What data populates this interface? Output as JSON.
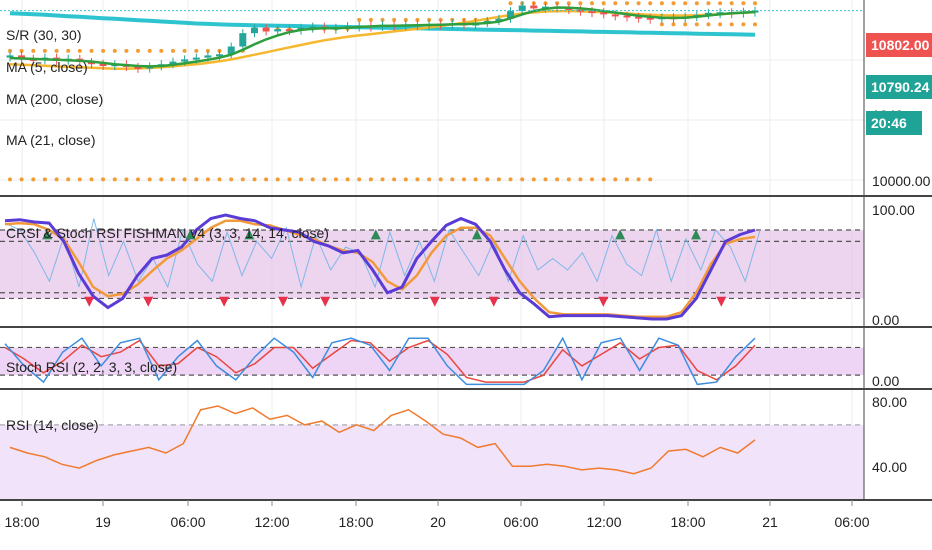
{
  "colors": {
    "background": "#ffffff",
    "grid": "#e9ecf1",
    "separator": "#444444",
    "candle_up": "#26a69a",
    "candle_down": "#ef5350",
    "ma5": "#2e9e3e",
    "ma200": "#2ec4cf",
    "ma21": "#f5b82e",
    "sr_dots": "#f39c33",
    "price_label_red": "#ef5350",
    "price_label_teal": "#1fa397",
    "band_fill": "#e6c3ea",
    "stoch_band_fill": "#eed4f5",
    "rsi_band_fill": "#f1e3fa",
    "dashed": "#555555",
    "crsi_fast": "#5b3bd6",
    "crsi_slow": "#f29a3a",
    "crsi_light": "#7fb7e6",
    "stoch_k": "#3d8ede",
    "stoch_d": "#e8473f",
    "rsi_line": "#f07a2e",
    "up_marker": "#2e8b57",
    "down_marker": "#e8314a"
  },
  "legends": {
    "main": [
      "S/R (30, 30)",
      "MA (5, close)",
      "MA (200, close)",
      "MA (21, close)"
    ],
    "crsi": "CRSI & Stoch RSI FISHMAN v4 (3, 3, 14, 14, close)",
    "stoch": "Stoch RSI (2, 2, 3, 3, close)",
    "rsi": "RSI (14, close)"
  },
  "axis": {
    "x_tick_labels": [
      "18:00",
      "19",
      "06:00",
      "12:00",
      "18:00",
      "20",
      "06:00",
      "12:00",
      "18:00",
      "21",
      "06:00"
    ],
    "main_price_labels": [
      "10000.00"
    ],
    "main_partial_label": "1040",
    "crsi_labels": [
      "100.00",
      "0.00"
    ],
    "stoch_labels": [
      "0.00"
    ],
    "rsi_labels": [
      "80.00",
      "40.00"
    ],
    "price_tags": [
      {
        "text": "10802.00",
        "color": "red"
      },
      {
        "text": "10790.24",
        "color": "teal"
      },
      {
        "text": "20:46",
        "color": "teal"
      }
    ]
  },
  "chart_data": [
    {
      "type": "candlestick",
      "title": "",
      "xlabel": "",
      "ylabel": "",
      "ylim": [
        9965,
        10850
      ],
      "visible_price_labels": [
        10000,
        10790.24,
        10802
      ],
      "candles": [
        {
          "o": 10590,
          "c": 10600,
          "up": true
        },
        {
          "o": 10600,
          "c": 10585,
          "up": false
        },
        {
          "o": 10585,
          "c": 10575,
          "up": false
        },
        {
          "o": 10578,
          "c": 10590,
          "up": true
        },
        {
          "o": 10590,
          "c": 10575,
          "up": false
        },
        {
          "o": 10575,
          "c": 10585,
          "up": true
        },
        {
          "o": 10585,
          "c": 10570,
          "up": false
        },
        {
          "o": 10570,
          "c": 10560,
          "up": false
        },
        {
          "o": 10562,
          "c": 10552,
          "up": false
        },
        {
          "o": 10552,
          "c": 10560,
          "up": true
        },
        {
          "o": 10560,
          "c": 10548,
          "up": false
        },
        {
          "o": 10548,
          "c": 10540,
          "up": false
        },
        {
          "o": 10540,
          "c": 10550,
          "up": true
        },
        {
          "o": 10550,
          "c": 10560,
          "up": true
        },
        {
          "o": 10560,
          "c": 10572,
          "up": true
        },
        {
          "o": 10572,
          "c": 10582,
          "up": true
        },
        {
          "o": 10582,
          "c": 10590,
          "up": true
        },
        {
          "o": 10590,
          "c": 10600,
          "up": true
        },
        {
          "o": 10600,
          "c": 10605,
          "up": true
        },
        {
          "o": 10605,
          "c": 10640,
          "up": true
        },
        {
          "o": 10640,
          "c": 10700,
          "up": true
        },
        {
          "o": 10700,
          "c": 10725,
          "up": true
        },
        {
          "o": 10725,
          "c": 10708,
          "up": false
        },
        {
          "o": 10708,
          "c": 10718,
          "up": true
        },
        {
          "o": 10718,
          "c": 10712,
          "up": false
        },
        {
          "o": 10712,
          "c": 10725,
          "up": true
        },
        {
          "o": 10725,
          "c": 10730,
          "up": true
        },
        {
          "o": 10730,
          "c": 10718,
          "up": false
        },
        {
          "o": 10718,
          "c": 10725,
          "up": true
        },
        {
          "o": 10725,
          "c": 10732,
          "up": true
        },
        {
          "o": 10732,
          "c": 10735,
          "up": true
        },
        {
          "o": 10735,
          "c": 10730,
          "up": false
        },
        {
          "o": 10730,
          "c": 10738,
          "up": true
        },
        {
          "o": 10738,
          "c": 10733,
          "up": false
        },
        {
          "o": 10733,
          "c": 10740,
          "up": true
        },
        {
          "o": 10740,
          "c": 10732,
          "up": false
        },
        {
          "o": 10732,
          "c": 10742,
          "up": true
        },
        {
          "o": 10742,
          "c": 10738,
          "up": false
        },
        {
          "o": 10738,
          "c": 10745,
          "up": true
        },
        {
          "o": 10745,
          "c": 10735,
          "up": false
        },
        {
          "o": 10735,
          "c": 10748,
          "up": true
        },
        {
          "o": 10748,
          "c": 10755,
          "up": true
        },
        {
          "o": 10755,
          "c": 10765,
          "up": true
        },
        {
          "o": 10765,
          "c": 10800,
          "up": true
        },
        {
          "o": 10800,
          "c": 10825,
          "up": true
        },
        {
          "o": 10825,
          "c": 10812,
          "up": false
        },
        {
          "o": 10812,
          "c": 10820,
          "up": true
        },
        {
          "o": 10820,
          "c": 10814,
          "up": false
        },
        {
          "o": 10814,
          "c": 10806,
          "up": false
        },
        {
          "o": 10806,
          "c": 10800,
          "up": false
        },
        {
          "o": 10800,
          "c": 10795,
          "up": false
        },
        {
          "o": 10795,
          "c": 10785,
          "up": false
        },
        {
          "o": 10785,
          "c": 10780,
          "up": false
        },
        {
          "o": 10780,
          "c": 10775,
          "up": false
        },
        {
          "o": 10775,
          "c": 10770,
          "up": false
        },
        {
          "o": 10770,
          "c": 10765,
          "up": false
        },
        {
          "o": 10765,
          "c": 10772,
          "up": true
        },
        {
          "o": 10772,
          "c": 10768,
          "up": false
        },
        {
          "o": 10768,
          "c": 10775,
          "up": true
        },
        {
          "o": 10775,
          "c": 10782,
          "up": true
        },
        {
          "o": 10782,
          "c": 10792,
          "up": true
        },
        {
          "o": 10792,
          "c": 10795,
          "up": true
        },
        {
          "o": 10795,
          "c": 10790,
          "up": false
        },
        {
          "o": 10790,
          "c": 10797,
          "up": true
        },
        {
          "o": 10797,
          "c": 10802,
          "up": true
        }
      ],
      "ma5": [
        10588,
        10586,
        10584,
        10582,
        10580,
        10578,
        10576,
        10572,
        10566,
        10560,
        10556,
        10552,
        10550,
        10552,
        10557,
        10564,
        10572,
        10580,
        10590,
        10603,
        10625,
        10650,
        10672,
        10690,
        10705,
        10715,
        10720,
        10722,
        10722,
        10725,
        10728,
        10731,
        10733,
        10734,
        10735,
        10736,
        10737,
        10738,
        10740,
        10741,
        10743,
        10746,
        10752,
        10768,
        10785,
        10800,
        10810,
        10816,
        10815,
        10812,
        10807,
        10800,
        10793,
        10786,
        10779,
        10774,
        10770,
        10769,
        10770,
        10774,
        10780,
        10786,
        10790,
        10793,
        10796
      ],
      "ma200": [
        10790,
        10788,
        10786,
        10783,
        10780,
        10777,
        10774,
        10771,
        10768,
        10765,
        10762,
        10759,
        10756,
        10753,
        10750,
        10747,
        10744,
        10742,
        10740,
        10738,
        10737,
        10736,
        10735,
        10734,
        10733,
        10732,
        10731,
        10730,
        10729,
        10728,
        10727,
        10726,
        10725,
        10724,
        10723,
        10722,
        10721,
        10720,
        10719,
        10718,
        10717,
        10716,
        10715,
        10714,
        10713,
        10712,
        10711,
        10710,
        10709,
        10708,
        10707,
        10706,
        10705,
        10704,
        10703,
        10702,
        10701,
        10700,
        10699,
        10698,
        10697,
        10696,
        10695,
        10694,
        10693
      ],
      "ma21": [
        10560,
        10558,
        10556,
        10553,
        10550,
        10548,
        10546,
        10544,
        10542,
        10540,
        10540,
        10541,
        10543,
        10546,
        10550,
        10555,
        10560,
        10566,
        10573,
        10582,
        10592,
        10603,
        10614,
        10625,
        10636,
        10647,
        10658,
        10668,
        10676,
        10684,
        10690,
        10696,
        10702,
        10708,
        10714,
        10720,
        10726,
        10733,
        10740,
        10748,
        10756,
        10765,
        10774,
        10782,
        10789,
        10794,
        10798,
        10800,
        10800,
        10799,
        10797,
        10795,
        10792,
        10789,
        10786,
        10783,
        10781,
        10780,
        10780,
        10781,
        10783,
        10786,
        10789,
        10792,
        10795
      ],
      "sr_upper": [
        10620,
        10620,
        10620,
        10620,
        10620,
        10620,
        10620,
        10620,
        10620,
        10620,
        10620,
        10620,
        10620,
        10620,
        10620,
        10620,
        10620,
        10620,
        10620,
        10620,
        10620,
        10720,
        10720,
        10720,
        10720,
        10720,
        10720,
        10720,
        10720,
        10720,
        10760,
        10760,
        10760,
        10760,
        10760,
        10760,
        10760,
        10760,
        10760,
        10760,
        10760,
        10760,
        10760,
        10835,
        10835,
        10835,
        10835,
        10835,
        10835,
        10835,
        10835,
        10835,
        10835,
        10835,
        10835,
        10835,
        10835,
        10835,
        10835,
        10835,
        10835,
        10835,
        10835,
        10835,
        10835
      ],
      "sr_lower": [
        10040,
        10040,
        10040,
        10040,
        10040,
        10040,
        10040,
        10040,
        10040,
        10040,
        10040,
        10040,
        10040,
        10040,
        10040,
        10040,
        10040,
        10040,
        10040,
        10040,
        10040,
        10040,
        10040,
        10040,
        10040,
        10040,
        10040,
        10040,
        10040,
        10040,
        10040,
        10040,
        10040,
        10040,
        10040,
        10040,
        10040,
        10040,
        10040,
        10040,
        10040,
        10040,
        10040,
        10040,
        10040,
        10040,
        10040,
        10040,
        10040,
        10040,
        10040,
        10040,
        10040,
        10040,
        10040,
        10040,
        10740,
        10740,
        10740,
        10740,
        10740,
        10740,
        10740,
        10740,
        10740
      ]
    },
    {
      "type": "line",
      "title": "CRSI & Stoch RSI FISHMAN v4 (3, 3, 14, 14, close)",
      "ylim": [
        -5,
        108
      ],
      "band": [
        20,
        80
      ],
      "dashed_levels": [
        20,
        25,
        70,
        80
      ],
      "series": [
        {
          "values": [
            88,
            89,
            87,
            86,
            70,
            42,
            22,
            12,
            20,
            40,
            55,
            58,
            65,
            80,
            90,
            93,
            90,
            88,
            82,
            80,
            78,
            70,
            66,
            60,
            62,
            45,
            25,
            30,
            55,
            70,
            84,
            90,
            85,
            70,
            45,
            25,
            15,
            4,
            5,
            5,
            5,
            5,
            4,
            3,
            2,
            2,
            5,
            20,
            45,
            70,
            76,
            80
          ]
        },
        {
          "values": [
            85,
            86,
            85,
            80,
            72,
            52,
            30,
            22,
            24,
            32,
            44,
            55,
            62,
            72,
            82,
            88,
            88,
            85,
            84,
            80,
            76,
            72,
            66,
            62,
            60,
            52,
            35,
            28,
            40,
            60,
            75,
            82,
            82,
            75,
            55,
            35,
            20,
            8,
            6,
            6,
            6,
            6,
            5,
            4,
            4,
            4,
            8,
            25,
            50,
            68,
            72,
            74
          ]
        },
        {
          "values": [
            86,
            80,
            60,
            35,
            75,
            30,
            90,
            40,
            70,
            35,
            55,
            30,
            80,
            50,
            35,
            78,
            40,
            70,
            55,
            82,
            30,
            75,
            45,
            65,
            60,
            30,
            78,
            40,
            70,
            35,
            80,
            60,
            40,
            70,
            35,
            75,
            45,
            55,
            45,
            60,
            35,
            75,
            50,
            40,
            80,
            35,
            72,
            45,
            80,
            65,
            35,
            80
          ]
        }
      ],
      "up_markers_idx": [
        5,
        22,
        29,
        44,
        56,
        73,
        82
      ],
      "down_markers_idx": [
        10,
        17,
        26,
        33,
        38,
        51,
        58,
        71,
        85
      ]
    },
    {
      "type": "line",
      "title": "Stoch RSI (2, 2, 3, 3, close)",
      "ylim": [
        -10,
        120
      ],
      "band": [
        20,
        80
      ],
      "dashed_levels": [
        20,
        80
      ],
      "series": [
        {
          "values": [
            88,
            40,
            5,
            70,
            100,
            40,
            90,
            100,
            10,
            60,
            95,
            40,
            10,
            60,
            100,
            70,
            15,
            90,
            100,
            85,
            30,
            100,
            100,
            40,
            0,
            0,
            0,
            0,
            30,
            100,
            10,
            90,
            100,
            30,
            100,
            85,
            0,
            5,
            60,
            100
          ]
        },
        {
          "values": [
            80,
            55,
            25,
            50,
            85,
            60,
            70,
            95,
            40,
            45,
            80,
            60,
            25,
            45,
            80,
            80,
            35,
            65,
            95,
            90,
            50,
            80,
            95,
            65,
            15,
            5,
            5,
            5,
            20,
            75,
            40,
            65,
            90,
            55,
            80,
            85,
            30,
            10,
            40,
            85
          ]
        }
      ]
    },
    {
      "type": "line",
      "title": "RSI (14, close)",
      "ylim": [
        30,
        88
      ],
      "band": [
        30,
        70
      ],
      "dashed_levels": [
        30,
        70
      ],
      "series": [
        {
          "values": [
            58,
            55,
            53,
            49,
            47,
            51,
            54,
            56,
            58,
            55,
            60,
            78,
            80,
            76,
            79,
            73,
            75,
            70,
            72,
            66,
            70,
            67,
            75,
            78,
            72,
            65,
            63,
            58,
            60,
            48,
            48,
            49,
            48,
            46,
            47,
            46,
            44,
            47,
            56,
            57,
            53,
            58,
            55,
            62
          ]
        }
      ]
    }
  ]
}
